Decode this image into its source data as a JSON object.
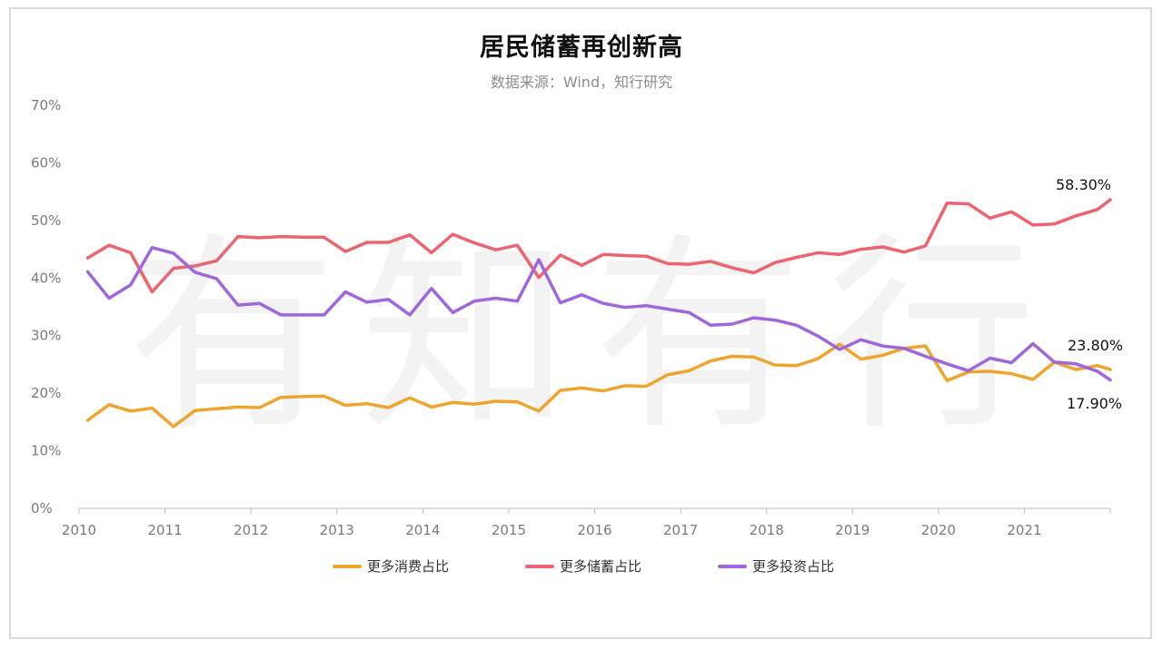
{
  "title": "居民储蓄再创新高",
  "subtitle": "数据来源：Wind，知行研究",
  "watermark": [
    "有",
    "知",
    "有",
    "行"
  ],
  "colors": {
    "consumption": "#efa52d",
    "savings": "#ec6470",
    "investment": "#a066dc"
  },
  "chart_data": {
    "type": "line",
    "title": "居民储蓄再创新高",
    "xlim": [
      2010,
      2022
    ],
    "ylim": [
      0,
      70
    ],
    "x_ticks": [
      "2010",
      "2011",
      "2012",
      "2013",
      "2014",
      "2015",
      "2016",
      "2017",
      "2018",
      "2019",
      "2020",
      "2021"
    ],
    "y_ticks": [
      "0%",
      "10%",
      "20%",
      "30%",
      "40%",
      "50%",
      "60%",
      "70%"
    ],
    "x": [
      2010.1,
      2010.35,
      2010.6,
      2010.85,
      2011.1,
      2011.35,
      2011.6,
      2011.85,
      2012.1,
      2012.35,
      2012.6,
      2012.85,
      2013.1,
      2013.35,
      2013.6,
      2013.85,
      2014.1,
      2014.35,
      2014.6,
      2014.85,
      2015.1,
      2015.35,
      2015.6,
      2015.85,
      2016.1,
      2016.35,
      2016.6,
      2016.85,
      2017.1,
      2017.35,
      2017.6,
      2017.85,
      2018.1,
      2018.35,
      2018.6,
      2018.85,
      2019.1,
      2019.35,
      2019.6,
      2019.85,
      2020.1,
      2020.35,
      2020.6,
      2020.85,
      2021.1,
      2021.35,
      2021.6,
      2021.85,
      2022.0
    ],
    "series": [
      {
        "name": "更多消费占比",
        "color": "#efa52d",
        "values": [
          15.3,
          18.0,
          16.9,
          17.4,
          14.2,
          17.0,
          17.3,
          17.6,
          17.5,
          19.3,
          19.4,
          19.5,
          17.9,
          18.2,
          17.5,
          19.2,
          17.6,
          18.4,
          18.1,
          18.6,
          18.5,
          16.9,
          20.5,
          20.9,
          20.4,
          21.3,
          21.2,
          23.2,
          23.9,
          25.6,
          26.4,
          26.3,
          24.9,
          24.8,
          26.0,
          28.5,
          25.9,
          26.6,
          27.8,
          28.2,
          22.2,
          23.7,
          23.8,
          23.4,
          22.4,
          25.4,
          24.1,
          24.8,
          24.1
        ]
      },
      {
        "name": "更多储蓄占比",
        "color": "#ec6470",
        "values": [
          43.5,
          45.7,
          44.4,
          37.6,
          41.7,
          42.1,
          43.0,
          47.2,
          47.0,
          47.2,
          47.1,
          47.1,
          44.6,
          46.2,
          46.2,
          47.5,
          44.4,
          47.6,
          46.1,
          44.9,
          45.7,
          40.1,
          44.0,
          42.2,
          44.1,
          43.9,
          43.8,
          42.5,
          42.4,
          42.9,
          41.8,
          40.9,
          42.7,
          43.6,
          44.4,
          44.1,
          45.0,
          45.4,
          44.5,
          45.6,
          53.0,
          52.9,
          50.4,
          51.5,
          49.2,
          49.4,
          50.8,
          51.9,
          53.6
        ]
      },
      {
        "name": "更多投资占比",
        "color": "#a066dc",
        "values": [
          41.1,
          36.5,
          38.8,
          45.3,
          44.3,
          41.0,
          39.9,
          35.3,
          35.6,
          33.6,
          33.6,
          33.6,
          37.6,
          35.8,
          36.3,
          33.6,
          38.2,
          34.0,
          36.0,
          36.5,
          36.0,
          43.2,
          35.7,
          37.1,
          35.6,
          34.9,
          35.2,
          34.6,
          34.0,
          31.8,
          32.0,
          33.1,
          32.7,
          31.8,
          29.9,
          27.6,
          29.3,
          28.2,
          27.8,
          26.4,
          25.1,
          23.9,
          26.1,
          25.3,
          28.6,
          25.4,
          25.1,
          23.8,
          22.3
        ]
      }
    ],
    "annotations": [
      "58.30%",
      "23.80%",
      "17.90%"
    ],
    "legend": "bottom-center"
  }
}
